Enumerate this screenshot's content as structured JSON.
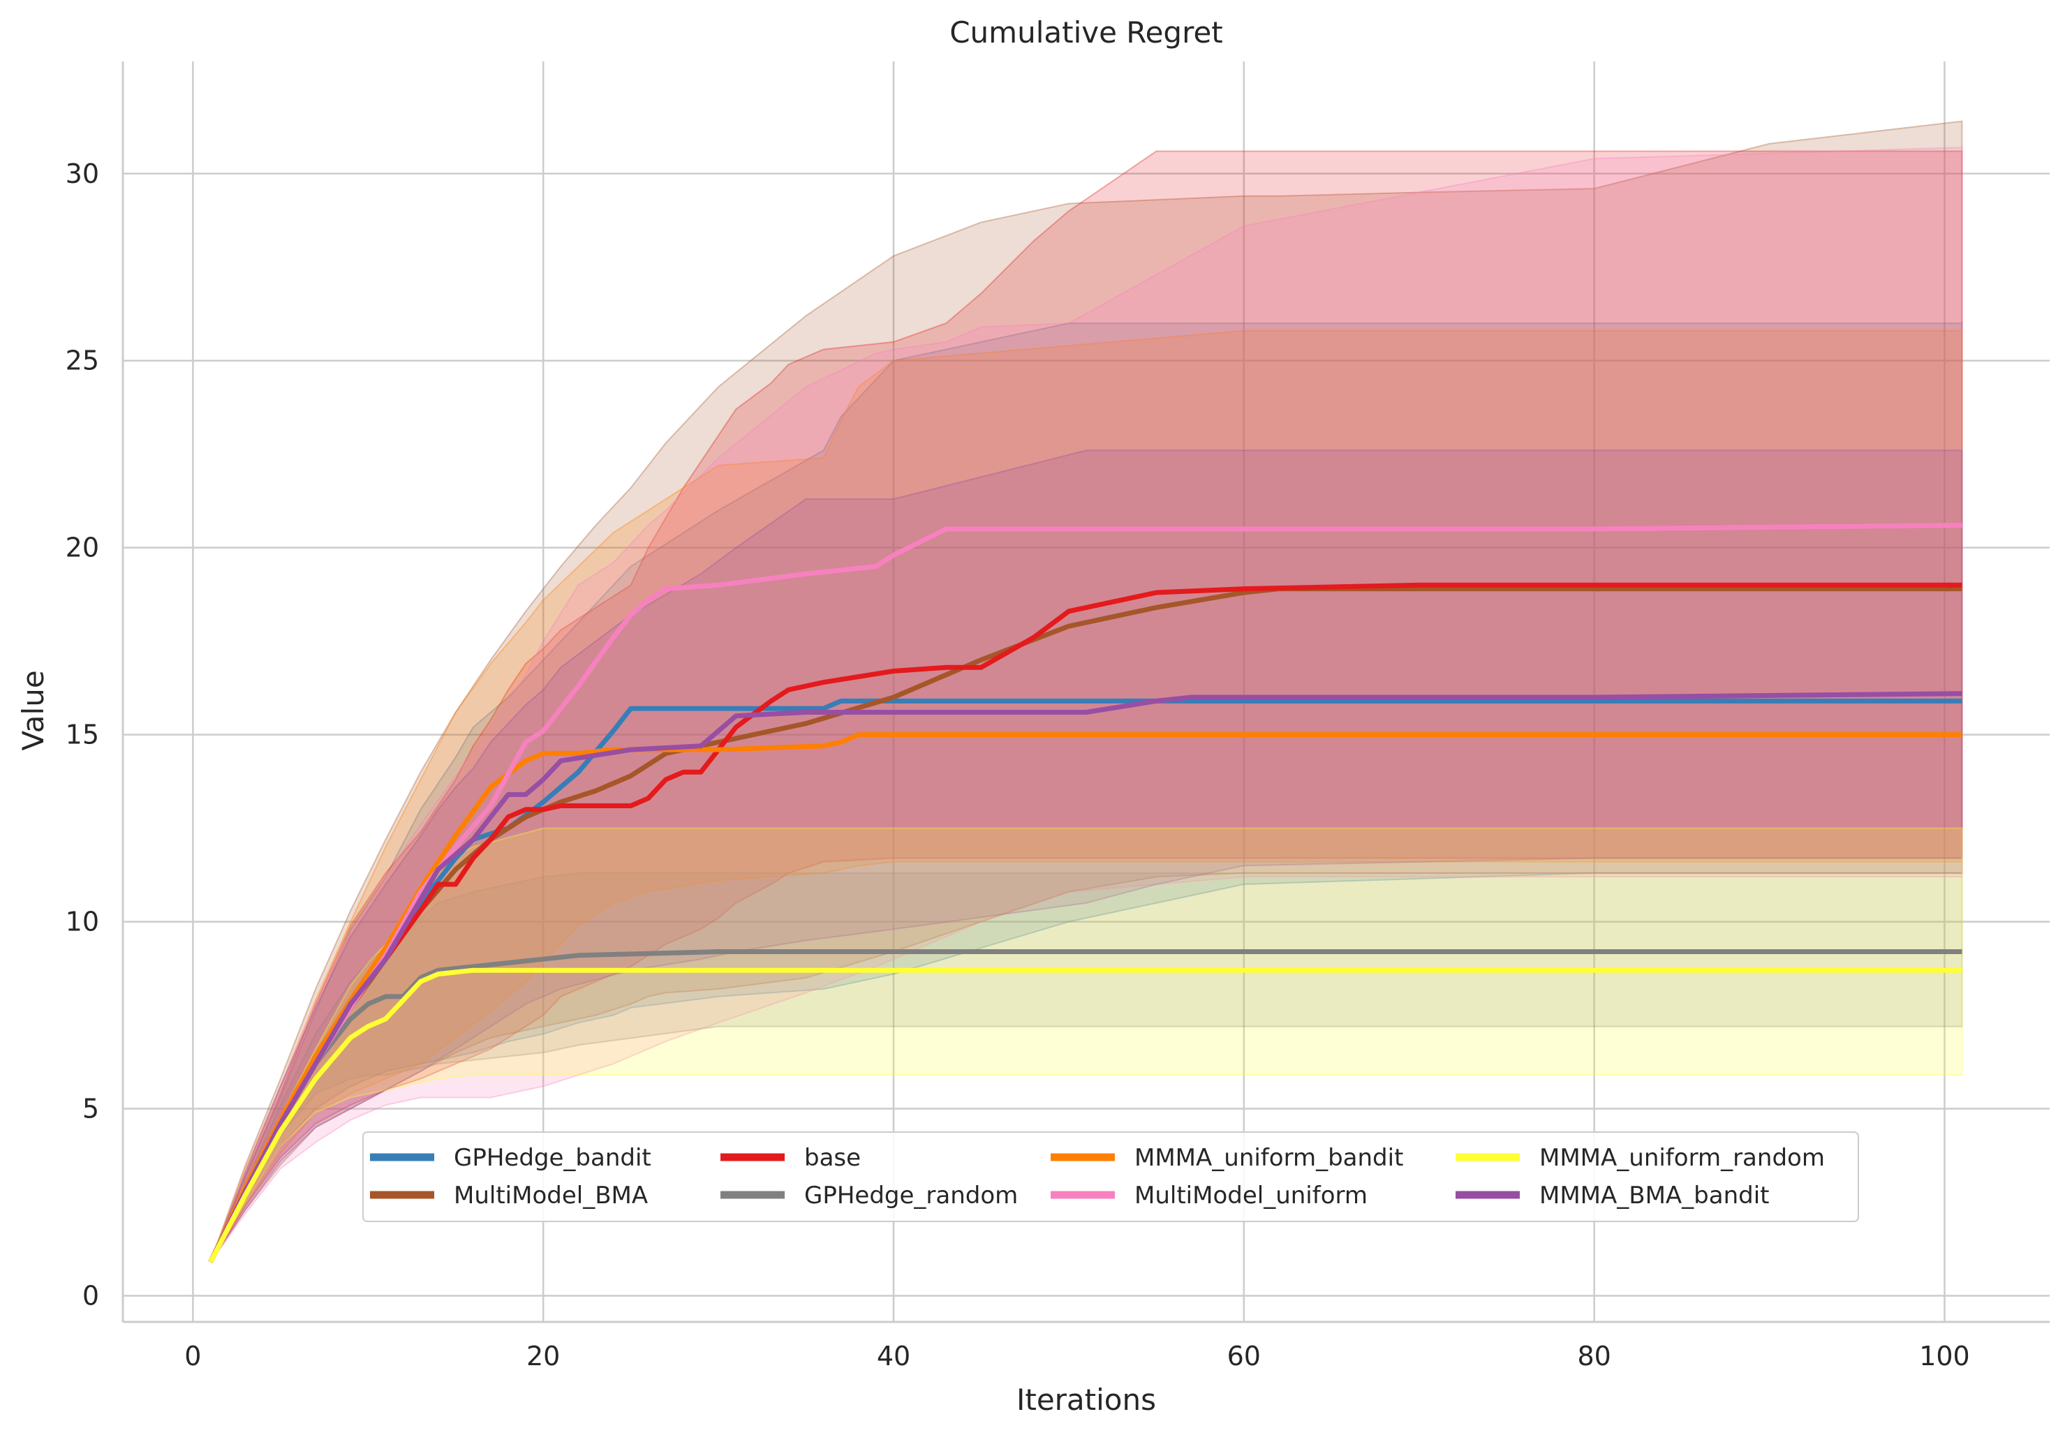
{
  "chart_data": {
    "type": "line",
    "title": "Cumulative Regret",
    "xlabel": "Iterations",
    "ylabel": "Value",
    "xlim": [
      -4,
      106
    ],
    "ylim": [
      -0.7,
      33
    ],
    "xticks": [
      0,
      20,
      40,
      60,
      80,
      100
    ],
    "yticks": [
      0,
      5,
      10,
      15,
      20,
      25,
      30
    ],
    "grid": true,
    "legend_position": "lower-center",
    "legend_columns": 4,
    "series": [
      {
        "name": "GPHedge_bandit",
        "color": "#377eb8",
        "x": [
          1,
          3,
          5,
          7,
          9,
          11,
          13,
          15,
          16,
          18,
          20,
          22,
          24,
          25,
          30,
          36,
          37,
          40,
          50,
          60,
          80,
          101
        ],
        "y": [
          0.9,
          2.8,
          4.6,
          6.3,
          7.8,
          9.0,
          10.5,
          11.7,
          12.2,
          12.5,
          13.2,
          14.0,
          15.1,
          15.7,
          15.7,
          15.7,
          15.9,
          15.9,
          15.9,
          15.9,
          15.9,
          15.9
        ],
        "lower": [
          0.9,
          2.5,
          4.0,
          5.0,
          5.6,
          6.0,
          6.2,
          6.4,
          6.5,
          6.8,
          7.0,
          7.3,
          7.5,
          7.7,
          8.0,
          8.2,
          8.3,
          8.6,
          10.0,
          11.0,
          11.3,
          11.3
        ],
        "upper": [
          0.9,
          3.2,
          5.3,
          7.6,
          9.8,
          11.2,
          13.0,
          14.4,
          15.2,
          16.0,
          17.0,
          18.0,
          19.0,
          19.5,
          21.0,
          22.6,
          23.5,
          25.0,
          26.0,
          26.0,
          26.0,
          26.0
        ]
      },
      {
        "name": "MultiModel_BMA",
        "color": "#a65628",
        "x": [
          1,
          3,
          5,
          7,
          9,
          11,
          13,
          15,
          17,
          19,
          21,
          23,
          25,
          26,
          27,
          30,
          35,
          40,
          45,
          50,
          55,
          60,
          62,
          70,
          80,
          90,
          101
        ],
        "y": [
          0.9,
          2.8,
          4.6,
          6.3,
          7.7,
          9.0,
          10.3,
          11.4,
          12.2,
          12.8,
          13.2,
          13.5,
          13.9,
          14.2,
          14.5,
          14.8,
          15.3,
          16.0,
          17.0,
          17.9,
          18.4,
          18.8,
          18.9,
          18.9,
          18.9,
          18.9,
          18.9
        ],
        "lower": [
          0.9,
          2.3,
          3.5,
          4.5,
          5.0,
          5.5,
          6.0,
          6.5,
          6.9,
          7.1,
          7.3,
          7.5,
          7.8,
          8.0,
          8.1,
          8.2,
          8.5,
          9.2,
          10.0,
          10.8,
          11.2,
          11.3,
          11.3,
          11.3,
          11.3,
          11.3,
          11.3
        ],
        "upper": [
          0.9,
          3.5,
          5.8,
          8.2,
          10.3,
          12.2,
          14.0,
          15.6,
          17.0,
          18.3,
          19.5,
          20.6,
          21.6,
          22.2,
          22.8,
          24.3,
          26.2,
          27.8,
          28.7,
          29.2,
          29.3,
          29.4,
          29.4,
          29.5,
          29.6,
          30.8,
          31.4
        ]
      },
      {
        "name": "base",
        "color": "#e41a1c",
        "x": [
          1,
          3,
          5,
          7,
          9,
          11,
          13,
          14,
          15,
          16,
          17,
          18,
          19,
          20,
          21,
          25,
          26,
          27,
          28,
          29,
          30,
          31,
          33,
          34,
          36,
          40,
          43,
          45,
          48,
          50,
          55,
          60,
          70,
          80,
          101
        ],
        "y": [
          0.9,
          2.8,
          4.6,
          6.3,
          7.8,
          9.0,
          10.3,
          11.0,
          11.0,
          11.7,
          12.2,
          12.8,
          13.0,
          13.0,
          13.1,
          13.1,
          13.3,
          13.8,
          14.0,
          14.0,
          14.6,
          15.2,
          15.9,
          16.2,
          16.4,
          16.7,
          16.8,
          16.8,
          17.6,
          18.3,
          18.8,
          18.9,
          19.0,
          19.0,
          19.0
        ],
        "lower": [
          0.9,
          2.4,
          3.7,
          4.6,
          5.1,
          5.5,
          5.8,
          6.0,
          6.2,
          6.4,
          6.6,
          6.9,
          7.2,
          7.5,
          8.0,
          8.8,
          9.1,
          9.4,
          9.6,
          9.8,
          10.1,
          10.5,
          11.0,
          11.3,
          11.6,
          11.7,
          11.7,
          11.7,
          11.7,
          11.7,
          11.7,
          11.7,
          11.7,
          11.7,
          11.7
        ],
        "upper": [
          0.9,
          3.2,
          5.4,
          7.8,
          9.9,
          11.3,
          12.4,
          13.1,
          13.8,
          14.7,
          15.4,
          16.2,
          16.9,
          17.3,
          17.8,
          19.0,
          20.0,
          20.8,
          21.6,
          22.3,
          23.0,
          23.7,
          24.4,
          24.9,
          25.3,
          25.5,
          26.0,
          26.8,
          28.2,
          29.0,
          30.6,
          30.6,
          30.6,
          30.6,
          30.6
        ]
      },
      {
        "name": "GPHedge_random",
        "color": "#808080",
        "x": [
          1,
          3,
          5,
          7,
          9,
          10,
          11,
          12,
          13,
          14,
          16,
          20,
          22,
          30,
          40,
          60,
          80,
          101
        ],
        "y": [
          0.9,
          2.8,
          4.6,
          6.2,
          7.4,
          7.8,
          8.0,
          8.0,
          8.5,
          8.7,
          8.8,
          9.0,
          9.1,
          9.2,
          9.2,
          9.2,
          9.2,
          9.2
        ],
        "lower": [
          0.9,
          2.6,
          4.3,
          5.4,
          5.8,
          5.9,
          5.9,
          6.0,
          6.1,
          6.2,
          6.3,
          6.5,
          6.7,
          7.2,
          7.2,
          7.2,
          7.2,
          7.2
        ],
        "upper": [
          0.9,
          3.0,
          5.1,
          7.0,
          8.4,
          8.9,
          9.3,
          9.6,
          10.1,
          10.5,
          10.8,
          11.2,
          11.3,
          11.3,
          11.3,
          11.3,
          11.3,
          11.3
        ]
      },
      {
        "name": "MMMA_uniform_bandit",
        "color": "#ff7f00",
        "x": [
          1,
          3,
          5,
          7,
          9,
          11,
          13,
          15,
          17,
          19,
          20,
          22,
          24,
          26,
          30,
          36,
          37,
          38,
          40,
          60,
          80,
          101
        ],
        "y": [
          0.9,
          2.9,
          4.7,
          6.4,
          7.9,
          9.3,
          10.9,
          12.3,
          13.6,
          14.3,
          14.5,
          14.5,
          14.6,
          14.6,
          14.6,
          14.7,
          14.8,
          15.0,
          15.0,
          15.0,
          15.0,
          15.0
        ],
        "lower": [
          0.9,
          2.4,
          3.8,
          4.9,
          5.4,
          5.8,
          6.2,
          6.9,
          7.6,
          8.4,
          8.9,
          9.9,
          10.5,
          10.8,
          11.1,
          11.3,
          11.4,
          11.5,
          11.6,
          11.6,
          11.6,
          11.6
        ],
        "upper": [
          0.9,
          3.4,
          5.6,
          7.9,
          10.0,
          12.0,
          13.8,
          15.6,
          16.9,
          18.0,
          18.6,
          19.5,
          20.4,
          21.0,
          22.2,
          22.4,
          23.4,
          24.3,
          25.0,
          25.8,
          25.8,
          25.8
        ]
      },
      {
        "name": "MultiModel_uniform",
        "color": "#f781bf",
        "x": [
          1,
          3,
          5,
          7,
          9,
          11,
          13,
          15,
          17,
          19,
          20,
          22,
          24,
          25,
          26,
          27,
          30,
          35,
          39,
          40,
          43,
          45,
          50,
          60,
          80,
          101
        ],
        "y": [
          0.9,
          2.8,
          4.6,
          6.2,
          7.7,
          9.1,
          10.8,
          12.0,
          13.1,
          14.8,
          15.1,
          16.3,
          17.6,
          18.2,
          18.6,
          18.9,
          19.0,
          19.3,
          19.5,
          19.8,
          20.5,
          20.5,
          20.5,
          20.5,
          20.5,
          20.6
        ],
        "lower": [
          0.9,
          2.2,
          3.4,
          4.1,
          4.7,
          5.1,
          5.3,
          5.3,
          5.3,
          5.5,
          5.6,
          5.9,
          6.2,
          6.4,
          6.6,
          6.8,
          7.3,
          8.1,
          8.8,
          9.0,
          9.6,
          10.0,
          10.8,
          11.2,
          11.2,
          11.2
        ],
        "upper": [
          0.9,
          3.3,
          5.6,
          7.8,
          9.7,
          11.2,
          12.6,
          13.9,
          15.2,
          16.6,
          17.5,
          19.0,
          19.6,
          20.1,
          20.6,
          21.0,
          22.4,
          24.3,
          25.2,
          25.3,
          25.5,
          25.9,
          26.0,
          28.6,
          30.4,
          30.7
        ]
      },
      {
        "name": "MMMA_BMA_bandit",
        "color": "#984ea3",
        "x": [
          1,
          3,
          5,
          7,
          9,
          11,
          13,
          14,
          15,
          16,
          17,
          18,
          19,
          20,
          21,
          25,
          29,
          31,
          35,
          40,
          51,
          55,
          57,
          60,
          80,
          101
        ],
        "y": [
          0.9,
          2.8,
          4.6,
          6.2,
          7.8,
          9.0,
          10.6,
          11.4,
          11.8,
          12.2,
          12.8,
          13.4,
          13.4,
          13.8,
          14.3,
          14.6,
          14.7,
          15.5,
          15.6,
          15.6,
          15.6,
          15.9,
          16.0,
          16.0,
          16.0,
          16.1
        ],
        "lower": [
          0.9,
          2.3,
          3.6,
          4.5,
          5.0,
          5.5,
          6.0,
          6.3,
          6.6,
          6.9,
          7.2,
          7.5,
          7.8,
          8.0,
          8.2,
          8.7,
          9.0,
          9.2,
          9.5,
          9.8,
          10.5,
          11.0,
          11.2,
          11.5,
          11.7,
          11.7
        ],
        "upper": [
          0.9,
          3.3,
          5.6,
          7.7,
          9.6,
          11.0,
          12.3,
          13.0,
          13.6,
          14.1,
          14.8,
          15.3,
          15.8,
          16.2,
          16.8,
          18.2,
          19.3,
          20.0,
          21.3,
          21.3,
          22.6,
          22.6,
          22.6,
          22.6,
          22.6,
          22.6
        ]
      },
      {
        "name": "MMMA_uniform_random",
        "color": "#ffff33",
        "x": [
          1,
          3,
          5,
          7,
          9,
          10,
          11,
          12,
          13,
          14,
          16,
          20,
          30,
          40,
          60,
          80,
          101
        ],
        "y": [
          0.9,
          2.7,
          4.4,
          5.8,
          6.9,
          7.2,
          7.4,
          7.9,
          8.4,
          8.6,
          8.7,
          8.7,
          8.7,
          8.7,
          8.7,
          8.7,
          8.7
        ],
        "lower": [
          0.9,
          2.5,
          4.0,
          4.9,
          5.3,
          5.4,
          5.5,
          5.6,
          5.7,
          5.8,
          5.9,
          5.9,
          5.9,
          5.9,
          5.9,
          5.9,
          5.9
        ],
        "upper": [
          0.9,
          2.9,
          4.8,
          6.6,
          8.3,
          8.9,
          9.4,
          10.2,
          11.0,
          11.5,
          12.0,
          12.5,
          12.5,
          12.5,
          12.5,
          12.5,
          12.5
        ]
      }
    ],
    "legend_order": [
      "GPHedge_bandit",
      "base",
      "MMMA_uniform_bandit",
      "MMMA_uniform_random",
      "MultiModel_BMA",
      "GPHedge_random",
      "MultiModel_uniform",
      "MMMA_BMA_bandit"
    ]
  }
}
